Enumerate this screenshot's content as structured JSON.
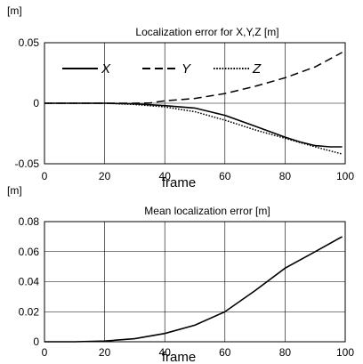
{
  "chart_data": [
    {
      "type": "line",
      "title": "Localization error for X,Y,Z [m]",
      "unit": "[m]",
      "xlabel": "frame",
      "ylabel": "",
      "xlim": [
        0,
        100
      ],
      "ylim": [
        -0.05,
        0.05
      ],
      "xticks": [
        0,
        20,
        40,
        60,
        80,
        100
      ],
      "yticks": [
        -0.05,
        0,
        0.05
      ],
      "ytick_labels": [
        "-0.05",
        "0",
        "0.05"
      ],
      "grid": true,
      "legend_position": "top-left, horizontal",
      "series": [
        {
          "name": "X",
          "style": "solid",
          "x": [
            0,
            10,
            20,
            30,
            40,
            50,
            55,
            60,
            70,
            80,
            85,
            90,
            95,
            99
          ],
          "y": [
            0,
            0,
            0,
            -0.0005,
            -0.002,
            -0.004,
            -0.007,
            -0.01,
            -0.019,
            -0.028,
            -0.032,
            -0.035,
            -0.036,
            -0.036
          ]
        },
        {
          "name": "Y",
          "style": "dashed",
          "x": [
            0,
            10,
            20,
            30,
            35,
            40,
            50,
            60,
            70,
            80,
            90,
            99
          ],
          "y": [
            0,
            0,
            0,
            0,
            0.0002,
            0.002,
            0.004,
            0.008,
            0.014,
            0.021,
            0.03,
            0.042
          ]
        },
        {
          "name": "Z",
          "style": "dotted",
          "x": [
            0,
            10,
            20,
            30,
            40,
            50,
            60,
            70,
            80,
            90,
            99
          ],
          "y": [
            0,
            0,
            0,
            -0.001,
            -0.003,
            -0.007,
            -0.014,
            -0.022,
            -0.029,
            -0.036,
            -0.042
          ]
        }
      ]
    },
    {
      "type": "line",
      "title": "Mean localization error [m]",
      "unit": "[m]",
      "xlabel": "frame",
      "ylabel": "",
      "xlim": [
        0,
        100
      ],
      "ylim": [
        0,
        0.08
      ],
      "xticks": [
        0,
        20,
        40,
        60,
        80,
        100
      ],
      "yticks": [
        0,
        0.02,
        0.04,
        0.06,
        0.08
      ],
      "ytick_labels": [
        "0",
        "0.02",
        "0.04",
        "0.06",
        "0.08"
      ],
      "grid": true,
      "series": [
        {
          "style": "solid",
          "x": [
            0,
            10,
            20,
            30,
            40,
            50,
            60,
            70,
            80,
            90,
            99
          ],
          "y": [
            0,
            0,
            0.0005,
            0.002,
            0.0055,
            0.011,
            0.02,
            0.034,
            0.049,
            0.06,
            0.07
          ]
        }
      ]
    }
  ]
}
